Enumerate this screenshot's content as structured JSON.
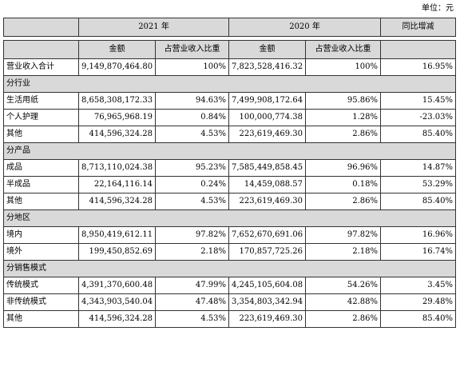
{
  "unit_label": "单位：元",
  "header": {
    "year_2021": "2021 年",
    "year_2020": "2020 年",
    "yoy": "同比增减",
    "amount": "金额",
    "ratio": "占营业收入比重"
  },
  "total": {
    "label": "营业收入合计",
    "amt2021": "9,149,870,464.80",
    "pct2021": "100%",
    "amt2020": "7,823,528,416.32",
    "pct2020": "100%",
    "yoy": "16.95%"
  },
  "sections": [
    {
      "title": "分行业",
      "rows": [
        {
          "label": "生活用纸",
          "amt2021": "8,658,308,172.33",
          "pct2021": "94.63%",
          "amt2020": "7,499,908,172.64",
          "pct2020": "95.86%",
          "yoy": "15.45%"
        },
        {
          "label": "个人护理",
          "amt2021": "76,965,968.19",
          "pct2021": "0.84%",
          "amt2020": "100,000,774.38",
          "pct2020": "1.28%",
          "yoy": "-23.03%"
        },
        {
          "label": "其他",
          "amt2021": "414,596,324.28",
          "pct2021": "4.53%",
          "amt2020": "223,619,469.30",
          "pct2020": "2.86%",
          "yoy": "85.40%"
        }
      ]
    },
    {
      "title": "分产品",
      "rows": [
        {
          "label": "成品",
          "amt2021": "8,713,110,024.38",
          "pct2021": "95.23%",
          "amt2020": "7,585,449,858.45",
          "pct2020": "96.96%",
          "yoy": "14.87%"
        },
        {
          "label": "半成品",
          "amt2021": "22,164,116.14",
          "pct2021": "0.24%",
          "amt2020": "14,459,088.57",
          "pct2020": "0.18%",
          "yoy": "53.29%"
        },
        {
          "label": "其他",
          "amt2021": "414,596,324.28",
          "pct2021": "4.53%",
          "amt2020": "223,619,469.30",
          "pct2020": "2.86%",
          "yoy": "85.40%"
        }
      ]
    },
    {
      "title": "分地区",
      "rows": [
        {
          "label": "境内",
          "amt2021": "8,950,419,612.11",
          "pct2021": "97.82%",
          "amt2020": "7,652,670,691.06",
          "pct2020": "97.82%",
          "yoy": "16.96%"
        },
        {
          "label": "境外",
          "amt2021": "199,450,852.69",
          "pct2021": "2.18%",
          "amt2020": "170,857,725.26",
          "pct2020": "2.18%",
          "yoy": "16.74%"
        }
      ]
    },
    {
      "title": "分销售模式",
      "rows": [
        {
          "label": "传统模式",
          "amt2021": "4,391,370,600.48",
          "pct2021": "47.99%",
          "amt2020": "4,245,105,604.08",
          "pct2020": "54.26%",
          "yoy": "3.45%"
        },
        {
          "label": "非传统模式",
          "amt2021": "4,343,903,540.04",
          "pct2021": "47.48%",
          "amt2020": "3,354,803,342.94",
          "pct2020": "42.88%",
          "yoy": "29.48%"
        },
        {
          "label": "其他",
          "amt2021": "414,596,324.28",
          "pct2021": "4.53%",
          "amt2020": "223,619,469.30",
          "pct2020": "2.86%",
          "yoy": "85.40%"
        }
      ]
    }
  ]
}
